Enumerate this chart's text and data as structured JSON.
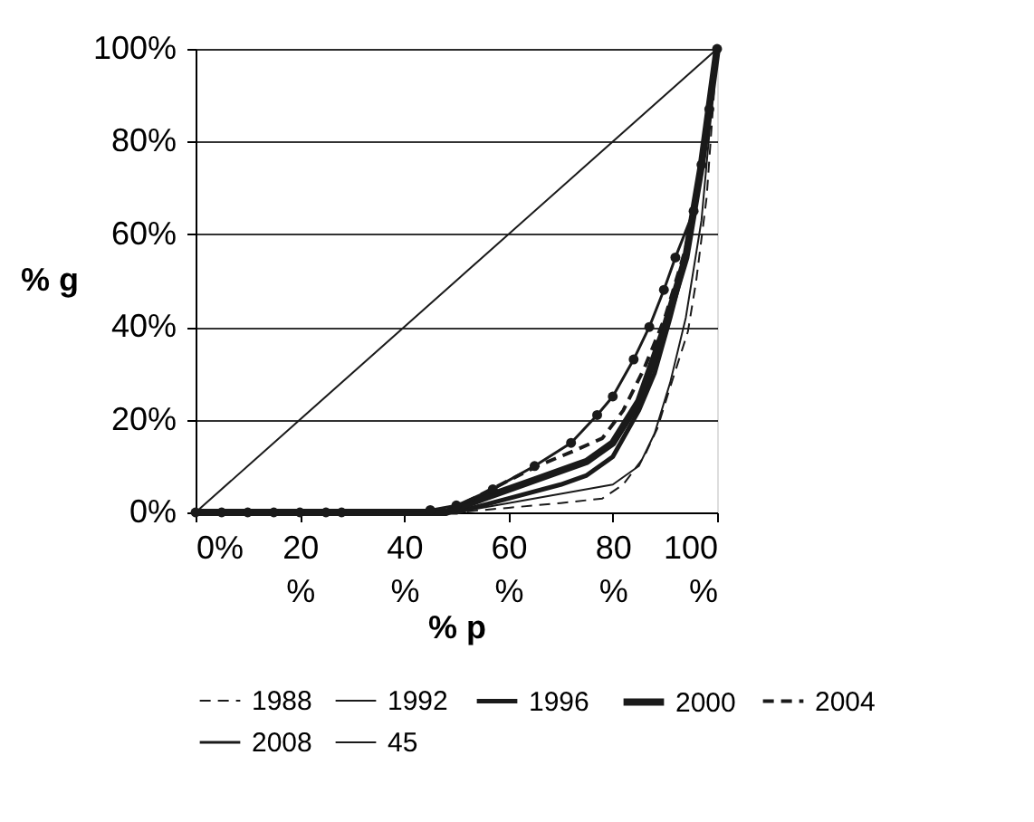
{
  "chart_data": {
    "type": "line",
    "xlabel": "% p",
    "ylabel": "% g",
    "xlim": [
      0,
      100
    ],
    "ylim": [
      0,
      100
    ],
    "xticks": [
      {
        "value": 0,
        "label": "0%"
      },
      {
        "value": 20,
        "label": "20 %"
      },
      {
        "value": 40,
        "label": "40 %"
      },
      {
        "value": 60,
        "label": "60 %"
      },
      {
        "value": 80,
        "label": "80 %"
      },
      {
        "value": 100,
        "label": "100 %"
      }
    ],
    "yticks": [
      {
        "value": 0,
        "label": "0%"
      },
      {
        "value": 20,
        "label": "20%"
      },
      {
        "value": 40,
        "label": "40%"
      },
      {
        "value": 60,
        "label": "60%"
      },
      {
        "value": 80,
        "label": "80%"
      },
      {
        "value": 100,
        "label": "100%"
      }
    ],
    "grid": "y",
    "legend": "bottom",
    "series": [
      {
        "name": "1988",
        "color": "#1a1a1a",
        "line_style": "dashed",
        "marker": "none",
        "x": [
          0,
          50,
          60,
          70,
          78,
          82,
          86,
          88.5,
          91,
          94.4,
          96,
          98,
          100
        ],
        "values": [
          0,
          0,
          1,
          2,
          3,
          6,
          12,
          18,
          27,
          39,
          50,
          68,
          100
        ]
      },
      {
        "name": "1992",
        "color": "#1a1a1a",
        "line_style": "solid",
        "marker": "none",
        "x": [
          0,
          50,
          60,
          70,
          80,
          85,
          88,
          91,
          94,
          97,
          100
        ],
        "values": [
          0,
          0,
          2,
          4,
          6,
          10,
          17,
          28,
          42,
          63,
          100
        ]
      },
      {
        "name": "1996",
        "color": "#1a1a1a",
        "line_style": "solid",
        "marker": "none",
        "x": [
          0,
          50,
          60,
          70,
          75,
          80,
          85,
          88,
          91,
          94,
          97,
          100
        ],
        "values": [
          0,
          0,
          3,
          6,
          8,
          12,
          22,
          30,
          42,
          55,
          75,
          100
        ]
      },
      {
        "name": "2000",
        "color": "#1a1a1a",
        "line_style": "solid",
        "marker": "none",
        "x": [
          0,
          48,
          55,
          65,
          75,
          80,
          85,
          90,
          94,
          97,
          100
        ],
        "values": [
          0,
          0,
          3,
          7,
          11,
          15,
          24,
          40,
          55,
          75,
          100
        ]
      },
      {
        "name": "2004",
        "color": "#1a1a1a",
        "line_style": "dashed",
        "marker": "none",
        "x": [
          0,
          48,
          55,
          65.5,
          72,
          78,
          82,
          86,
          90,
          94,
          97,
          100
        ],
        "values": [
          0,
          0,
          4,
          10,
          13,
          16,
          22,
          31,
          42,
          57,
          75,
          100
        ]
      },
      {
        "name": "2008",
        "color": "#1a1a1a",
        "line_style": "solid",
        "marker": "circle",
        "x": [
          0,
          5,
          10,
          15,
          20,
          25,
          28,
          45,
          50,
          57,
          65,
          72,
          77,
          80,
          84,
          87,
          89.8,
          92,
          95.5,
          97,
          98.5,
          100
        ],
        "values": [
          0,
          0,
          0,
          0,
          0,
          0,
          0,
          0.5,
          1.5,
          5,
          10,
          15,
          21,
          25,
          33,
          40,
          48,
          55,
          65,
          75,
          87,
          100
        ]
      },
      {
        "name": "45",
        "color": "#1a1a1a",
        "line_style": "solid",
        "marker": "none",
        "x": [
          0,
          100
        ],
        "values": [
          0,
          100
        ]
      }
    ]
  }
}
